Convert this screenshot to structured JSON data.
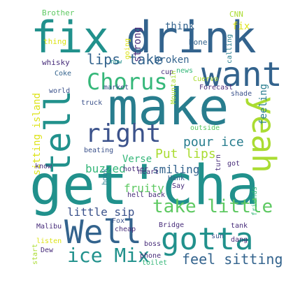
{
  "colors": {
    "dark_purple": "#472c7a",
    "indigo": "#3b528b",
    "blue": "#33638d",
    "teal": "#21918c",
    "teal_dark": "#287d8e",
    "green": "#35b779",
    "green_light": "#5ec962",
    "lime": "#aadc32",
    "yellow": "#dde318",
    "bright_yellow": "#fde725"
  },
  "words": [
    "get'cha",
    "make",
    "fix",
    "drink",
    "tell",
    "want",
    "yeah",
    "Well",
    "gotta",
    "right",
    "Chorus",
    "take little",
    "ice Mix",
    "feel sitting",
    "lips take",
    "Put lips",
    "pour ice",
    "sitting island",
    "Verse",
    "smiling",
    "buzzed",
    "fruity",
    "little sip",
    "think",
    "strong",
    "broken",
    "feeling",
    "fix",
    "Brother",
    "CNN",
    "going",
    "thing",
    "None",
    "calling",
    "now",
    "whisky",
    "Coke",
    "news",
    "cup",
    "market",
    "Forecast",
    "world",
    "Cuervo",
    "truck",
    "shade",
    "outside",
    "Mountain",
    "beating",
    "hotter",
    "know",
    "heart",
    "got",
    "Hank",
    "hook",
    "Say",
    "turn",
    "hell",
    "back",
    "Malibu",
    "Fox",
    "cheap",
    "Bridge",
    "tank",
    "friends",
    "listen",
    "boss",
    "sun",
    "dang",
    "Dew",
    "start",
    "phone",
    "toilet"
  ]
}
